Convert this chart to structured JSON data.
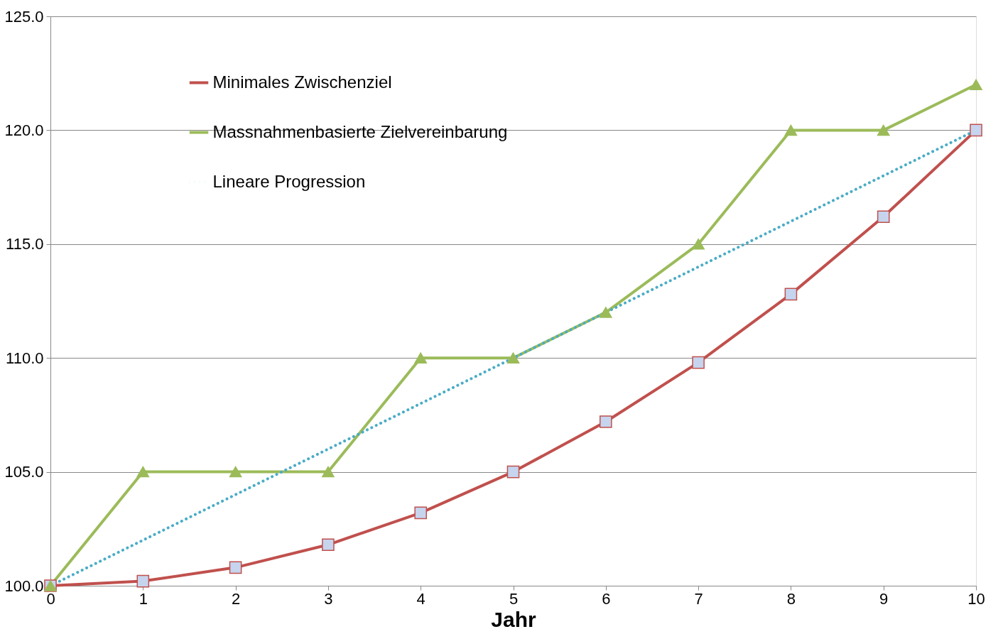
{
  "chart_data": {
    "type": "line",
    "xlabel": "Jahr",
    "x": [
      0,
      1,
      2,
      3,
      4,
      5,
      6,
      7,
      8,
      9,
      10
    ],
    "series": [
      {
        "name": "Minimales Zwischenziel",
        "color": "#c0504d",
        "marker": "square",
        "line_style": "solid",
        "values": [
          100,
          100.2,
          100.8,
          101.8,
          103.2,
          105.0,
          107.2,
          109.8,
          112.8,
          116.2,
          120
        ]
      },
      {
        "name": "Massnahmenbasierte Zielvereinbarung",
        "color": "#9bbb59",
        "marker": "triangle",
        "line_style": "solid",
        "values": [
          100,
          105,
          105,
          105,
          110,
          110,
          112,
          115,
          120,
          120,
          122
        ]
      },
      {
        "name": "Lineare Progression",
        "color": "#4bacc6",
        "marker": "none",
        "line_style": "dotted",
        "values": [
          100,
          102,
          104,
          106,
          108,
          110,
          112,
          114,
          116,
          118,
          120
        ]
      }
    ],
    "xlim": [
      0,
      10
    ],
    "xticks": [
      0,
      1,
      2,
      3,
      4,
      5,
      6,
      7,
      8,
      9,
      10
    ],
    "ylim": [
      100,
      125
    ],
    "yticks": [
      {
        "value": 100,
        "label": "100.0"
      },
      {
        "value": 105,
        "label": "105.0"
      },
      {
        "value": 110,
        "label": "110.0"
      },
      {
        "value": 115,
        "label": "115.0"
      },
      {
        "value": 120,
        "label": "120.0"
      },
      {
        "value": 125,
        "label": "125.0"
      }
    ],
    "grid": "y",
    "legend": "top left"
  }
}
